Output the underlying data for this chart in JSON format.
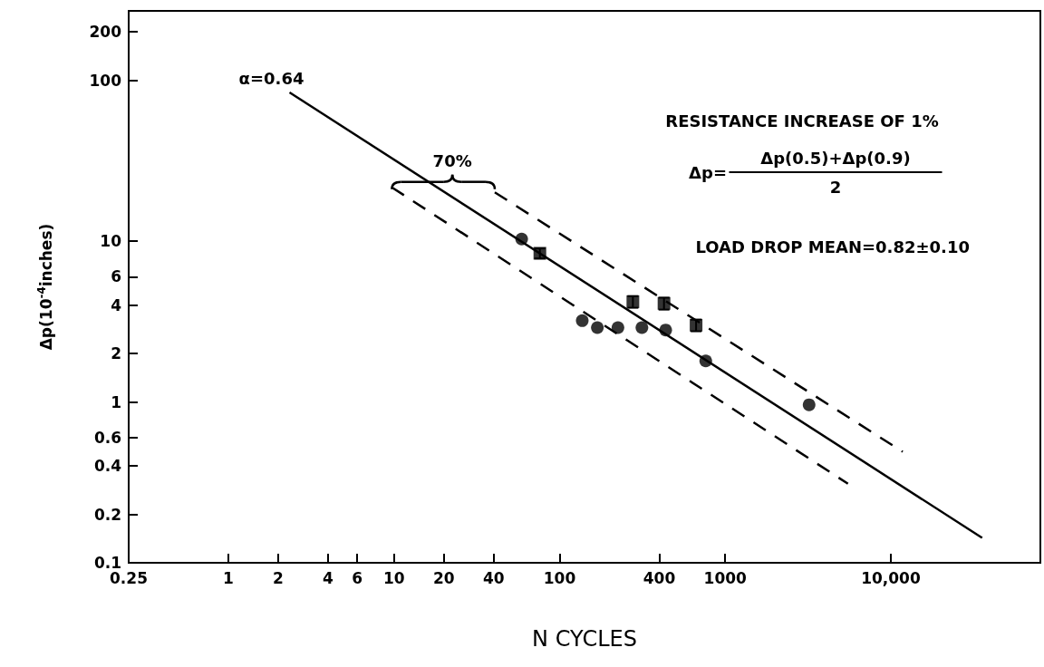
{
  "chart_data": {
    "type": "scatter",
    "xlabel": "N CYCLES",
    "ylabel": "Δp(10$^{-4}$inches)",
    "log": "xy",
    "grid": false,
    "xlim": [
      0.25,
      80000
    ],
    "xticks": [
      0.25,
      1,
      2,
      4,
      6,
      10,
      20,
      40,
      100,
      400,
      1000,
      {
        "value": 10000,
        "label": "10,000"
      }
    ],
    "ylim": [
      0.1,
      270
    ],
    "yticks": [
      0.1,
      0.2,
      0.4,
      0.6,
      1,
      2,
      4,
      6,
      10,
      100,
      200
    ],
    "series": [
      {
        "marker": "circle",
        "color": "#000000",
        "x": [
          59,
          137,
          169,
          225,
          314,
          437,
          763,
          3210
        ],
        "values": [
          10.3,
          3.2,
          2.9,
          2.9,
          2.9,
          2.8,
          1.8,
          0.96
        ]
      },
      {
        "marker": "square",
        "color": "#000000",
        "x": [
          76,
          277,
          427,
          667
        ],
        "values": [
          8.4,
          4.2,
          4.1,
          3.0
        ],
        "errors": [
          0.6,
          0.35,
          0.35,
          0.25
        ]
      },
      {
        "type": "line",
        "line_style": "solid",
        "marker": "none",
        "color": "#000000",
        "x": [
          2.34,
          35600
        ],
        "values": [
          84,
          0.143
        ]
      },
      {
        "type": "line",
        "line_style": "dashed",
        "marker": "none",
        "color": "#000000",
        "x": [
          40.6,
          11800
        ],
        "values": [
          20.1,
          0.49
        ]
      },
      {
        "type": "line",
        "line_style": "dashed",
        "marker": "none",
        "color": "#000000",
        "x": [
          9.7,
          5510
        ],
        "values": [
          21.6,
          0.31
        ]
      }
    ],
    "annotations": [
      {
        "text": "α=0.64",
        "x": 2.34,
        "y": 84
      },
      "70%",
      "RESISTANCE INCREASE OF 1%",
      "Δp=",
      "Δp(0.5)+Δp(0.9)",
      "2",
      "LOAD DROP MEAN=0.82±0.10"
    ]
  }
}
